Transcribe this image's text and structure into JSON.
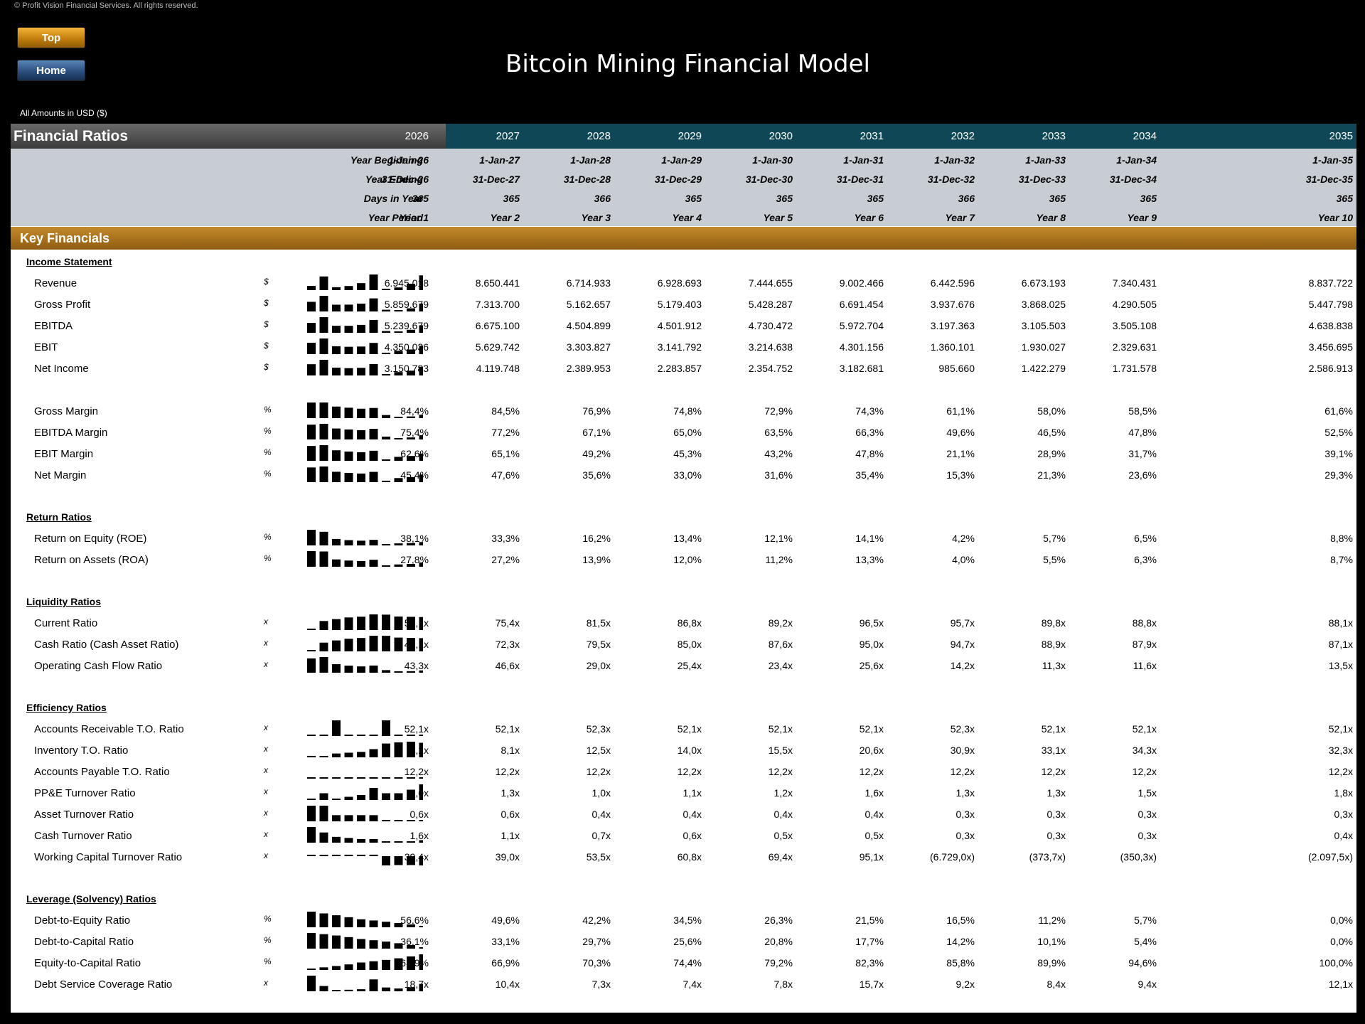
{
  "copyright": "© Profit Vision Financial Services. All rights reserved.",
  "nav": {
    "top_label": "Top",
    "home_label": "Home"
  },
  "title": "Bitcoin Mining Financial Model",
  "amounts_note": "All Amounts in  USD ($)",
  "section_title": "Financial Ratios",
  "key_financials_title": "Key Financials",
  "years": [
    "2026",
    "2027",
    "2028",
    "2029",
    "2030",
    "2031",
    "2032",
    "2033",
    "2034",
    "2035"
  ],
  "period_rows": [
    {
      "label": "Year Beginning",
      "values": [
        "1-Jan-26",
        "1-Jan-27",
        "1-Jan-28",
        "1-Jan-29",
        "1-Jan-30",
        "1-Jan-31",
        "1-Jan-32",
        "1-Jan-33",
        "1-Jan-34",
        "1-Jan-35"
      ]
    },
    {
      "label": "Year Ending",
      "values": [
        "31-Dec-26",
        "31-Dec-27",
        "31-Dec-28",
        "31-Dec-29",
        "31-Dec-30",
        "31-Dec-31",
        "31-Dec-32",
        "31-Dec-33",
        "31-Dec-34",
        "31-Dec-35"
      ]
    },
    {
      "label": "Days in Year",
      "values": [
        "365",
        "365",
        "366",
        "365",
        "365",
        "365",
        "366",
        "365",
        "365",
        "365"
      ]
    },
    {
      "label": "Year Period",
      "values": [
        "Year 1",
        "Year 2",
        "Year 3",
        "Year 4",
        "Year 5",
        "Year 6",
        "Year 7",
        "Year 8",
        "Year 9",
        "Year 10"
      ]
    }
  ],
  "sections": [
    {
      "title": "Income Statement",
      "rows": [
        {
          "label": "Revenue",
          "unit": "$",
          "values": [
            "6.945.018",
            "8.650.441",
            "6.714.933",
            "6.928.693",
            "7.444.655",
            "9.002.466",
            "6.442.596",
            "6.673.193",
            "7.340.431",
            "8.837.722"
          ],
          "nums": [
            6945018,
            8650441,
            6714933,
            6928693,
            7444655,
            9002466,
            6442596,
            6673193,
            7340431,
            8837722
          ]
        },
        {
          "label": "Gross Profit",
          "unit": "$",
          "values": [
            "5.859.679",
            "7.313.700",
            "5.162.657",
            "5.179.403",
            "5.428.287",
            "6.691.454",
            "3.937.676",
            "3.868.025",
            "4.290.505",
            "5.447.798"
          ],
          "nums": [
            5859679,
            7313700,
            5162657,
            5179403,
            5428287,
            6691454,
            3937676,
            3868025,
            4290505,
            5447798
          ]
        },
        {
          "label": "EBITDA",
          "unit": "$",
          "values": [
            "5.239.679",
            "6.675.100",
            "4.504.899",
            "4.501.912",
            "4.730.472",
            "5.972.704",
            "3.197.363",
            "3.105.503",
            "3.505.108",
            "4.638.838"
          ],
          "nums": [
            5239679,
            6675100,
            4504899,
            4501912,
            4730472,
            5972704,
            3197363,
            3105503,
            3505108,
            4638838
          ]
        },
        {
          "label": "EBIT",
          "unit": "$",
          "values": [
            "4.350.036",
            "5.629.742",
            "3.303.827",
            "3.141.792",
            "3.214.638",
            "4.301.156",
            "1.360.101",
            "1.930.027",
            "2.329.631",
            "3.456.695"
          ],
          "nums": [
            4350036,
            5629742,
            3303827,
            3141792,
            3214638,
            4301156,
            1360101,
            1930027,
            2329631,
            3456695
          ]
        },
        {
          "label": "Net Income",
          "unit": "$",
          "values": [
            "3.150.783",
            "4.119.748",
            "2.389.953",
            "2.283.857",
            "2.354.752",
            "3.182.681",
            "985.660",
            "1.422.279",
            "1.731.578",
            "2.586.913"
          ],
          "nums": [
            3150783,
            4119748,
            2389953,
            2283857,
            2354752,
            3182681,
            985660,
            1422279,
            1731578,
            2586913
          ]
        },
        {
          "spacer": true
        },
        {
          "label": "Gross Margin",
          "unit": "%",
          "values": [
            "84,4%",
            "84,5%",
            "76,9%",
            "74,8%",
            "72,9%",
            "74,3%",
            "61,1%",
            "58,0%",
            "58,5%",
            "61,6%"
          ],
          "nums": [
            84.4,
            84.5,
            76.9,
            74.8,
            72.9,
            74.3,
            61.1,
            58.0,
            58.5,
            61.6
          ]
        },
        {
          "label": "EBITDA Margin",
          "unit": "%",
          "values": [
            "75,4%",
            "77,2%",
            "67,1%",
            "65,0%",
            "63,5%",
            "66,3%",
            "49,6%",
            "46,5%",
            "47,8%",
            "52,5%"
          ],
          "nums": [
            75.4,
            77.2,
            67.1,
            65.0,
            63.5,
            66.3,
            49.6,
            46.5,
            47.8,
            52.5
          ]
        },
        {
          "label": "EBIT Margin",
          "unit": "%",
          "values": [
            "62,6%",
            "65,1%",
            "49,2%",
            "45,3%",
            "43,2%",
            "47,8%",
            "21,1%",
            "28,9%",
            "31,7%",
            "39,1%"
          ],
          "nums": [
            62.6,
            65.1,
            49.2,
            45.3,
            43.2,
            47.8,
            21.1,
            28.9,
            31.7,
            39.1
          ]
        },
        {
          "label": "Net Margin",
          "unit": "%",
          "values": [
            "45,4%",
            "47,6%",
            "35,6%",
            "33,0%",
            "31,6%",
            "35,4%",
            "15,3%",
            "21,3%",
            "23,6%",
            "29,3%"
          ],
          "nums": [
            45.4,
            47.6,
            35.6,
            33.0,
            31.6,
            35.4,
            15.3,
            21.3,
            23.6,
            29.3
          ]
        }
      ]
    },
    {
      "title": "Return Ratios",
      "rows": [
        {
          "label": "Return on Equity (ROE)",
          "unit": "%",
          "values": [
            "38,1%",
            "33,3%",
            "16,2%",
            "13,4%",
            "12,1%",
            "14,1%",
            "4,2%",
            "5,7%",
            "6,5%",
            "8,8%"
          ],
          "nums": [
            38.1,
            33.3,
            16.2,
            13.4,
            12.1,
            14.1,
            4.2,
            5.7,
            6.5,
            8.8
          ]
        },
        {
          "label": "Return on Assets (ROA)",
          "unit": "%",
          "values": [
            "27,8%",
            "27,2%",
            "13,9%",
            "12,0%",
            "11,2%",
            "13,3%",
            "4,0%",
            "5,5%",
            "6,3%",
            "8,7%"
          ],
          "nums": [
            27.8,
            27.2,
            13.9,
            12.0,
            11.2,
            13.3,
            4.0,
            5.5,
            6.3,
            8.7
          ]
        }
      ]
    },
    {
      "title": "Liquidity Ratios",
      "rows": [
        {
          "label": "Current Ratio",
          "unit": "x",
          "values": [
            "51,1x",
            "75,4x",
            "81,5x",
            "86,8x",
            "89,2x",
            "96,5x",
            "95,7x",
            "89,8x",
            "88,8x",
            "88,1x"
          ],
          "nums": [
            51.1,
            75.4,
            81.5,
            86.8,
            89.2,
            96.5,
            95.7,
            89.8,
            88.8,
            88.1
          ]
        },
        {
          "label": "Cash Ratio (Cash Asset Ratio)",
          "unit": "x",
          "values": [
            "48,1x",
            "72,3x",
            "79,5x",
            "85,0x",
            "87,6x",
            "95,0x",
            "94,7x",
            "88,9x",
            "87,9x",
            "87,1x"
          ],
          "nums": [
            48.1,
            72.3,
            79.5,
            85.0,
            87.6,
            95.0,
            94.7,
            88.9,
            87.9,
            87.1
          ]
        },
        {
          "label": "Operating Cash Flow Ratio",
          "unit": "x",
          "values": [
            "43,3x",
            "46,6x",
            "29,0x",
            "25,4x",
            "23,4x",
            "25,6x",
            "14,2x",
            "11,3x",
            "11,6x",
            "13,5x"
          ],
          "nums": [
            43.3,
            46.6,
            29.0,
            25.4,
            23.4,
            25.6,
            14.2,
            11.3,
            11.6,
            13.5
          ]
        }
      ]
    },
    {
      "title": "Efficiency Ratios",
      "rows": [
        {
          "label": "Accounts Receivable T.O. Ratio",
          "unit": "x",
          "values": [
            "52,1x",
            "52,1x",
            "52,3x",
            "52,1x",
            "52,1x",
            "52,1x",
            "52,3x",
            "52,1x",
            "52,1x",
            "52,1x"
          ],
          "nums": [
            52.1,
            52.1,
            52.3,
            52.1,
            52.1,
            52.1,
            52.3,
            52.1,
            52.1,
            52.1
          ]
        },
        {
          "label": "Inventory T.O. Ratio",
          "unit": "x",
          "values": [
            "8,2x",
            "8,1x",
            "12,5x",
            "14,0x",
            "15,5x",
            "20,6x",
            "30,9x",
            "33,1x",
            "34,3x",
            "32,3x"
          ],
          "nums": [
            8.2,
            8.1,
            12.5,
            14.0,
            15.5,
            20.6,
            30.9,
            33.1,
            34.3,
            32.3
          ]
        },
        {
          "label": "Accounts Payable T.O. Ratio",
          "unit": "x",
          "values": [
            "12,2x",
            "12,2x",
            "12,2x",
            "12,2x",
            "12,2x",
            "12,2x",
            "12,2x",
            "12,2x",
            "12,2x",
            "12,2x"
          ],
          "nums": [
            12.2,
            12.2,
            12.2,
            12.2,
            12.2,
            12.2,
            12.2,
            12.2,
            12.2,
            12.2
          ]
        },
        {
          "label": "PP&E Turnover Ratio",
          "unit": "x",
          "values": [
            "1,0x",
            "1,3x",
            "1,0x",
            "1,1x",
            "1,2x",
            "1,6x",
            "1,3x",
            "1,3x",
            "1,5x",
            "1,8x"
          ],
          "nums": [
            1.0,
            1.3,
            1.0,
            1.1,
            1.2,
            1.6,
            1.3,
            1.3,
            1.5,
            1.8
          ]
        },
        {
          "label": "Asset Turnover Ratio",
          "unit": "x",
          "values": [
            "0,6x",
            "0,6x",
            "0,4x",
            "0,4x",
            "0,4x",
            "0,4x",
            "0,3x",
            "0,3x",
            "0,3x",
            "0,3x"
          ],
          "nums": [
            0.6,
            0.6,
            0.4,
            0.4,
            0.4,
            0.4,
            0.3,
            0.3,
            0.3,
            0.3
          ]
        },
        {
          "label": "Cash Turnover Ratio",
          "unit": "x",
          "values": [
            "1,6x",
            "1,1x",
            "0,7x",
            "0,6x",
            "0,5x",
            "0,5x",
            "0,3x",
            "0,3x",
            "0,3x",
            "0,4x"
          ],
          "nums": [
            1.6,
            1.1,
            0.7,
            0.6,
            0.5,
            0.5,
            0.3,
            0.3,
            0.3,
            0.4
          ]
        },
        {
          "label": "Working Capital Turnover Ratio",
          "unit": "x",
          "values": [
            "39,4x",
            "39,0x",
            "53,5x",
            "60,8x",
            "69,4x",
            "95,1x",
            "(6.729,0x)",
            "(373,7x)",
            "(350,3x)",
            "(2.097,5x)"
          ],
          "nums": [
            39.4,
            39.0,
            53.5,
            60.8,
            69.4,
            95.1,
            -6729.0,
            -373.7,
            -350.3,
            -2097.5
          ]
        }
      ]
    },
    {
      "title": "Leverage (Solvency) Ratios",
      "rows": [
        {
          "label": "Debt-to-Equity Ratio",
          "unit": "%",
          "values": [
            "56,6%",
            "49,6%",
            "42,2%",
            "34,5%",
            "26,3%",
            "21,5%",
            "16,5%",
            "11,2%",
            "5,7%",
            "0,0%"
          ],
          "nums": [
            56.6,
            49.6,
            42.2,
            34.5,
            26.3,
            21.5,
            16.5,
            11.2,
            5.7,
            0.0
          ]
        },
        {
          "label": "Debt-to-Capital Ratio",
          "unit": "%",
          "values": [
            "36,1%",
            "33,1%",
            "29,7%",
            "25,6%",
            "20,8%",
            "17,7%",
            "14,2%",
            "10,1%",
            "5,4%",
            "0,0%"
          ],
          "nums": [
            36.1,
            33.1,
            29.7,
            25.6,
            20.8,
            17.7,
            14.2,
            10.1,
            5.4,
            0.0
          ]
        },
        {
          "label": "Equity-to-Capital Ratio",
          "unit": "%",
          "values": [
            "63,9%",
            "66,9%",
            "70,3%",
            "74,4%",
            "79,2%",
            "82,3%",
            "85,8%",
            "89,9%",
            "94,6%",
            "100,0%"
          ],
          "nums": [
            63.9,
            66.9,
            70.3,
            74.4,
            79.2,
            82.3,
            85.8,
            89.9,
            94.6,
            100.0
          ]
        },
        {
          "label": "Debt Service Coverage Ratio",
          "unit": "x",
          "values": [
            "18,7x",
            "10,4x",
            "7,3x",
            "7,4x",
            "7,8x",
            "15,7x",
            "9,2x",
            "8,4x",
            "9,4x",
            "12,1x"
          ],
          "nums": [
            18.7,
            10.4,
            7.3,
            7.4,
            7.8,
            15.7,
            9.2,
            8.4,
            9.4,
            12.1
          ]
        }
      ]
    }
  ]
}
